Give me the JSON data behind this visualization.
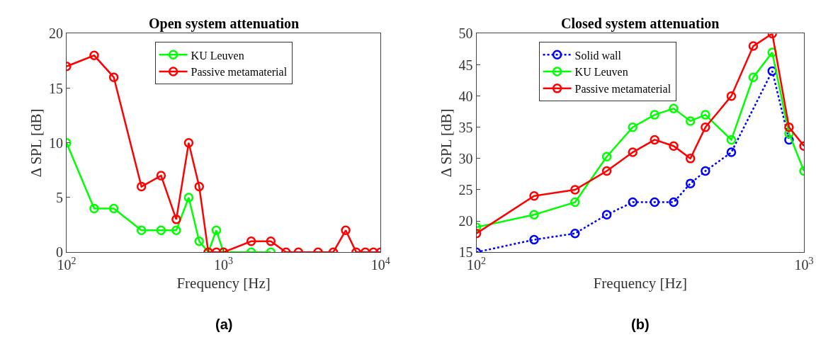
{
  "chart_data": [
    {
      "type": "line",
      "title": "Open system attenuation",
      "xlabel": "Frequency [Hz]",
      "ylabel": "Δ SPL [dB]",
      "log": "x",
      "marker": "circle",
      "legend": "top",
      "x": [
        100,
        150,
        200,
        300,
        400,
        500,
        600,
        700,
        800,
        900,
        1000,
        1500,
        2000,
        2500,
        3000,
        4000,
        5000,
        6000,
        7000,
        8000,
        9000,
        10000
      ],
      "xlim": [
        100,
        10000
      ],
      "xticks": [
        {
          "value": 100,
          "label": "10$^{2}$"
        },
        {
          "value": 1000,
          "label": "10$^{3}$"
        },
        {
          "value": 10000,
          "label": "10$^{4}$"
        }
      ],
      "ylim": [
        0,
        20
      ],
      "yticks": [
        0,
        5,
        10,
        15,
        20
      ],
      "series": [
        {
          "name": "KU Leuven",
          "color": "#00ff00",
          "line_style": "solid",
          "x": [
            100,
            150,
            200,
            300,
            400,
            500,
            600,
            700,
            800,
            900,
            1000,
            1500,
            2000
          ],
          "values": [
            10,
            4,
            4,
            2,
            2,
            2,
            5,
            1,
            0,
            2,
            0,
            0,
            0
          ]
        },
        {
          "name": "Passive metamaterial",
          "color": "#ff0000",
          "line_style": "solid",
          "values": [
            17,
            18,
            16,
            6,
            7,
            3,
            10,
            6,
            0,
            0,
            0,
            1,
            1,
            0,
            0,
            0,
            0,
            2,
            0,
            0,
            0,
            0
          ]
        }
      ],
      "annotations": [
        "(a)"
      ]
    },
    {
      "type": "line",
      "title": "Closed system attenuation",
      "xlabel": "Frequency [Hz]",
      "ylabel": "Δ SPL [dB]",
      "log": "x",
      "marker": "circle",
      "legend": "top",
      "x": [
        100,
        150,
        200,
        250,
        300,
        350,
        400,
        450,
        500,
        600,
        700,
        800,
        900,
        1000
      ],
      "xlim": [
        100,
        1000
      ],
      "xticks": [
        {
          "value": 100,
          "label": "10$^{2}$"
        },
        {
          "value": 1000,
          "label": "10$^{3}$"
        }
      ],
      "ylim": [
        15,
        50
      ],
      "yticks": [
        15,
        20,
        25,
        30,
        35,
        40,
        45,
        50
      ],
      "series": [
        {
          "name": "Solid wall",
          "color": "#0000ff",
          "line_style": "dotted",
          "x": [
            100,
            150,
            200,
            250,
            300,
            350,
            400,
            450,
            500,
            600,
            800,
            900
          ],
          "values": [
            15,
            17,
            18,
            21,
            23,
            23,
            23,
            26,
            28,
            31,
            44,
            33
          ]
        },
        {
          "name": "KU Leuven",
          "color": "#00ff00",
          "line_style": "solid",
          "values": [
            19,
            21,
            23,
            30.3,
            35,
            37,
            38,
            36,
            37,
            33,
            43,
            47,
            34,
            28
          ]
        },
        {
          "name": "Passive metamaterial",
          "color": "#ff0000",
          "line_style": "solid",
          "values": [
            18,
            24,
            25,
            28,
            31,
            33,
            32,
            30,
            35,
            40,
            48,
            50,
            35,
            32
          ]
        }
      ],
      "annotations": [
        "(b)"
      ]
    }
  ]
}
